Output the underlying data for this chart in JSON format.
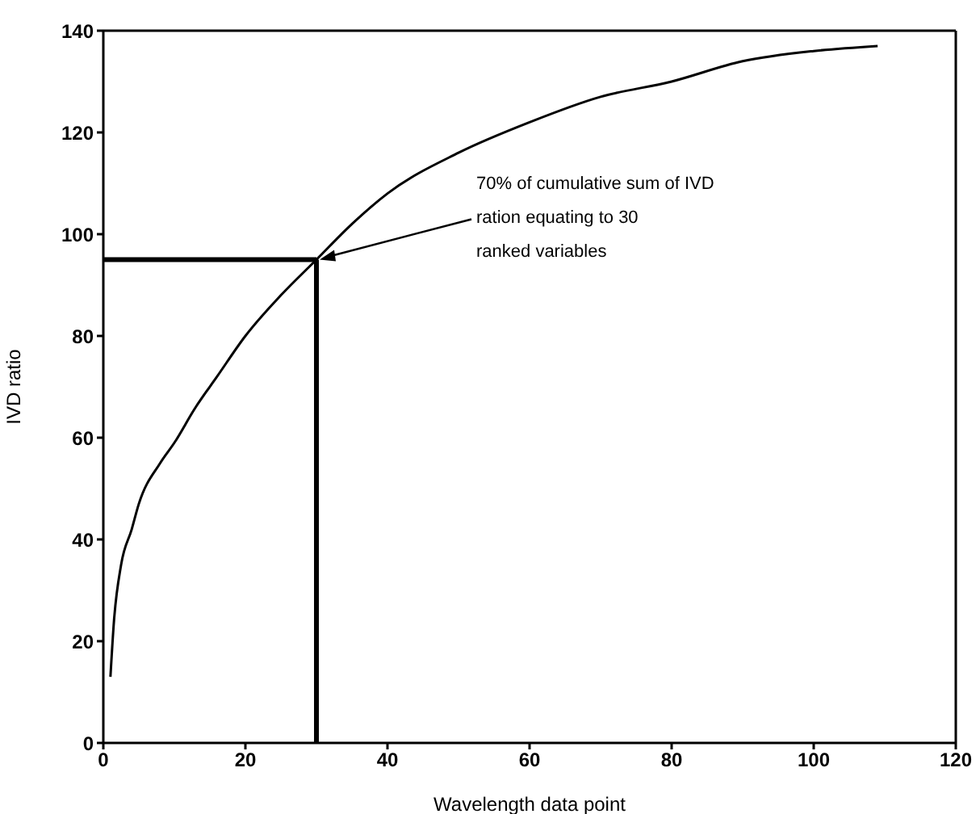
{
  "chart_data": {
    "type": "line",
    "xlabel": "Wavelength data point",
    "ylabel": "IVD ratio",
    "x": [
      1,
      1.5,
      2.5,
      4,
      5,
      8,
      10,
      13,
      16,
      20,
      25,
      30,
      35,
      40,
      50,
      60,
      70,
      80,
      90,
      100,
      109
    ],
    "series": [
      {
        "color": "#000000",
        "values": [
          13,
          24,
          35,
          42,
          47,
          55,
          59,
          66,
          72,
          80,
          88,
          95,
          102,
          108,
          116,
          122,
          127,
          130,
          134,
          136,
          137
        ]
      }
    ],
    "xlim": [
      0,
      120
    ],
    "xticks": [
      0,
      20,
      40,
      60,
      80,
      100,
      120
    ],
    "ylim": [
      0,
      140
    ],
    "yticks": [
      0,
      20,
      40,
      60,
      80,
      100,
      120,
      140
    ],
    "ref_lines": [
      {
        "axis": "x",
        "value": 30
      },
      {
        "axis": "y",
        "value": 95
      }
    ],
    "annotations": [
      {
        "text": "70% of cumulative sum of IVD\nration equating to 30\nranked variables",
        "x": 30,
        "y": 95
      }
    ],
    "marker": "none",
    "line_style": "solid"
  }
}
